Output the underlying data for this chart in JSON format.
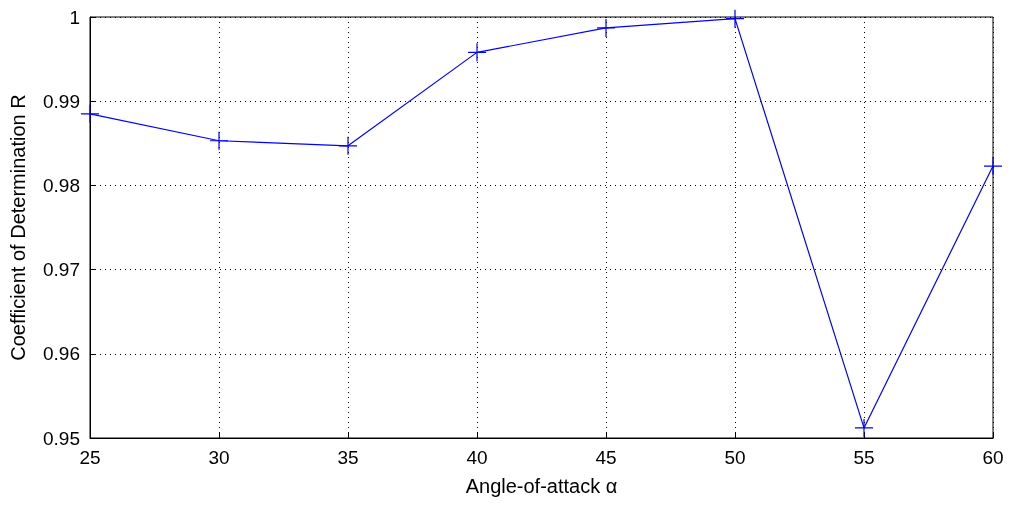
{
  "chart_data": {
    "type": "line",
    "xlabel": "Angle-of-attack α",
    "ylabel": "Coefficient of Determination R",
    "x": [
      25,
      30,
      35,
      40,
      45,
      50,
      55,
      60
    ],
    "series": [
      {
        "color": "#0000ff",
        "values": [
          0.9885,
          0.9853,
          0.9847,
          0.9958,
          0.9987,
          0.9998,
          0.9512,
          0.9823
        ]
      }
    ],
    "xlim": [
      25,
      60
    ],
    "xticks": [
      25,
      30,
      35,
      40,
      45,
      50,
      55,
      60
    ],
    "ylim": [
      0.95,
      1
    ],
    "yticks": [
      0.95,
      0.96,
      0.97,
      0.98,
      0.99,
      1
    ],
    "grid": true,
    "marker": "cross",
    "line_style": "solid"
  }
}
